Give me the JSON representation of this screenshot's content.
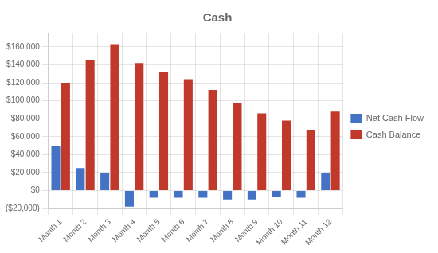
{
  "chart_data": {
    "type": "bar",
    "title": "Cash",
    "categories": [
      "Month 1",
      "Month 2",
      "Month 3",
      "Month 4",
      "Month 5",
      "Month 6",
      "Month 7",
      "Month 8",
      "Month 9",
      "Month 10",
      "Month 11",
      "Month 12"
    ],
    "series": [
      {
        "name": "Net Cash Flow",
        "color": "#4472C4",
        "values": [
          50000,
          25000,
          20000,
          -18000,
          -8000,
          -8000,
          -8000,
          -10000,
          -10000,
          -7000,
          -8000,
          20000
        ]
      },
      {
        "name": "Cash Balance",
        "color": "#C0392B",
        "values": [
          120000,
          145000,
          163000,
          142000,
          132000,
          124000,
          112000,
          97000,
          86000,
          78000,
          67000,
          88000
        ]
      }
    ],
    "ylim": [
      -20000,
      175000
    ],
    "yticks": [
      {
        "value": -20000,
        "label": "($20,000)"
      },
      {
        "value": 0,
        "label": "$0"
      },
      {
        "value": 20000,
        "label": "$20,000"
      },
      {
        "value": 40000,
        "label": "$40,000"
      },
      {
        "value": 60000,
        "label": "$60,000"
      },
      {
        "value": 80000,
        "label": "$80,000"
      },
      {
        "value": 100000,
        "label": "$100,000"
      },
      {
        "value": 120000,
        "label": "$120,000"
      },
      {
        "value": 140000,
        "label": "$140,000"
      },
      {
        "value": 160000,
        "label": "$160,000"
      }
    ],
    "grid": true,
    "legend": "right"
  }
}
